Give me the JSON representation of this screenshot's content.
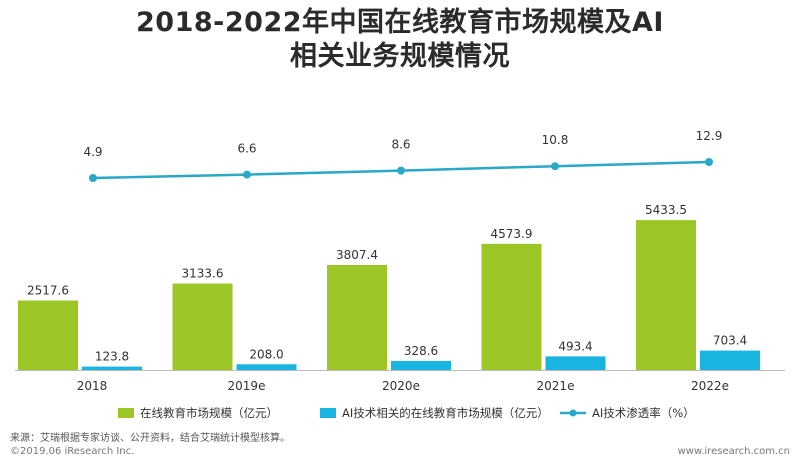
{
  "title": {
    "line1": "2018-2022年中国在线教育市场规模及AI",
    "line2": "相关业务规模情况"
  },
  "chart_data": {
    "type": "bar",
    "categories": [
      "2018",
      "2019e",
      "2020e",
      "2021e",
      "2022e"
    ],
    "series": [
      {
        "name": "在线教育市场规模（亿元）",
        "type": "bar",
        "color": "#9cc625",
        "values": [
          2517.6,
          3133.6,
          3807.4,
          4573.9,
          5433.5
        ],
        "labels": [
          "2517.6",
          "3133.6",
          "3807.4",
          "4573.9",
          "5433.5"
        ]
      },
      {
        "name": "AI技术相关的在线教育市场规模（亿元）",
        "type": "bar",
        "color": "#1ab4e0",
        "values": [
          123.8,
          208.0,
          328.6,
          493.4,
          703.4
        ],
        "labels": [
          "123.8",
          "208.0",
          "328.6",
          "493.4",
          "703.4"
        ]
      },
      {
        "name": "AI技术渗透率（%）",
        "type": "line",
        "color": "#2aa8c8",
        "values": [
          4.9,
          6.6,
          8.6,
          10.8,
          12.9
        ],
        "labels": [
          "4.9",
          "6.6",
          "8.6",
          "10.8",
          "12.9"
        ]
      }
    ],
    "ylim": [
      0,
      5800
    ],
    "grid": false,
    "legend_position": "bottom"
  },
  "footer": {
    "source": "来源：艾瑞根据专家访谈、公开资料，结合艾瑞统计模型核算。",
    "copyright": "©2019.06 iResearch Inc.",
    "url": "www.iresearch.com.cn"
  }
}
